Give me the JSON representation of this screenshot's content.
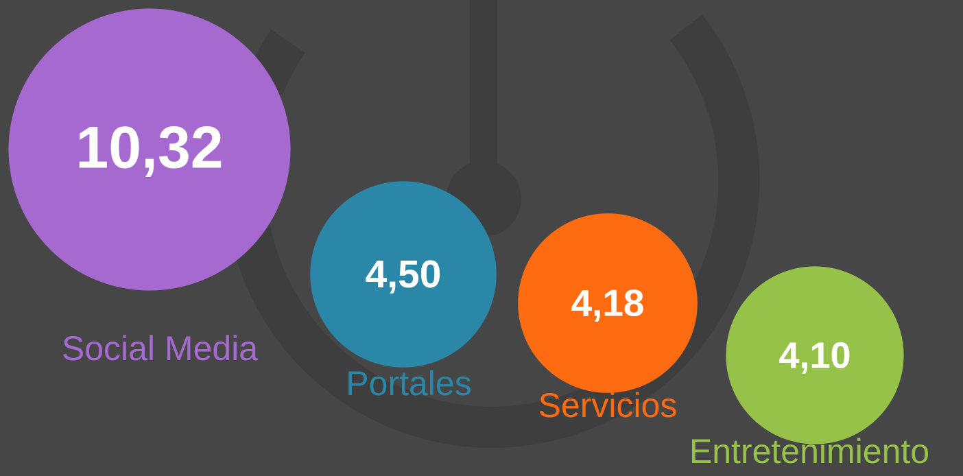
{
  "chart_data": {
    "type": "bubble",
    "categories": [
      "Social Media",
      "Portales",
      "Servicios",
      "Entretenimiento"
    ],
    "values": [
      10.32,
      4.5,
      4.18,
      4.1
    ],
    "value_labels": [
      "10,32",
      "4,50",
      "4,18",
      "4,10"
    ],
    "colors": [
      "#a569d0",
      "#2a87a7",
      "#fe6b10",
      "#97c24a"
    ]
  }
}
